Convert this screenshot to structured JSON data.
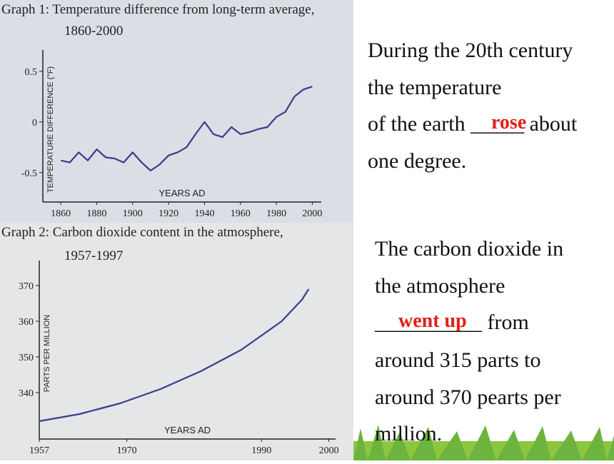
{
  "chart_data": [
    {
      "type": "line",
      "title_lines": [
        "Graph 1:  Temperature difference from long-term average,",
        "1860-2000"
      ],
      "x_label": "YEARS AD",
      "y_label": "TEMPERATURE DIFFERENCE (°F)",
      "x": [
        1860,
        1865,
        1870,
        1875,
        1880,
        1885,
        1890,
        1895,
        1900,
        1905,
        1910,
        1915,
        1920,
        1925,
        1930,
        1935,
        1940,
        1945,
        1950,
        1955,
        1960,
        1965,
        1970,
        1975,
        1980,
        1985,
        1990,
        1995,
        2000
      ],
      "series": [
        {
          "name": "Temperature difference",
          "color": "#3d3a8c",
          "values": [
            -0.38,
            -0.4,
            -0.3,
            -0.38,
            -0.27,
            -0.35,
            -0.36,
            -0.4,
            -0.3,
            -0.4,
            -0.48,
            -0.42,
            -0.33,
            -0.3,
            -0.25,
            -0.12,
            0.0,
            -0.12,
            -0.15,
            -0.05,
            -0.12,
            -0.1,
            -0.07,
            -0.05,
            0.05,
            0.1,
            0.25,
            0.32,
            0.35
          ]
        }
      ],
      "xlim": [
        1850,
        2005
      ],
      "ylim": [
        -0.79,
        0.64
      ],
      "xticks": [
        1860,
        1880,
        1900,
        1920,
        1940,
        1960,
        1980,
        2000
      ],
      "yticks": [
        0.5,
        0,
        -0.5
      ]
    },
    {
      "type": "line",
      "title_lines": [
        "Graph 2:  Carbon dioxide content in the atmosphere,",
        "1957-1997"
      ],
      "x_label": "YEARS AD",
      "y_label": "PARTS PER MILLION",
      "x": [
        1957,
        1960,
        1963,
        1966,
        1969,
        1972,
        1975,
        1978,
        1981,
        1984,
        1987,
        1990,
        1993,
        1996,
        1997
      ],
      "series": [
        {
          "name": "Carbon dioxide",
          "color": "#3d3a8c",
          "values": [
            332,
            333,
            334,
            335.5,
            337,
            339,
            341,
            343.5,
            346,
            349,
            352,
            356,
            360,
            366,
            369
          ]
        }
      ],
      "xlim": [
        1957,
        2001
      ],
      "ylim": [
        327,
        375
      ],
      "xticks": [
        1957,
        1970,
        1990,
        2000
      ],
      "yticks": [
        370,
        360,
        350,
        340
      ]
    }
  ],
  "text_blocks": [
    {
      "lines": [
        "During the 20th century",
        "the temperature",
        "of the earth _____  about",
        "one degree."
      ],
      "answer": "rose"
    },
    {
      "lines": [
        "The carbon dioxide in",
        "the atmosphere",
        "__________  from",
        "around 315 parts to",
        "around 370 pearts per",
        "million."
      ],
      "answer": "went up"
    }
  ]
}
